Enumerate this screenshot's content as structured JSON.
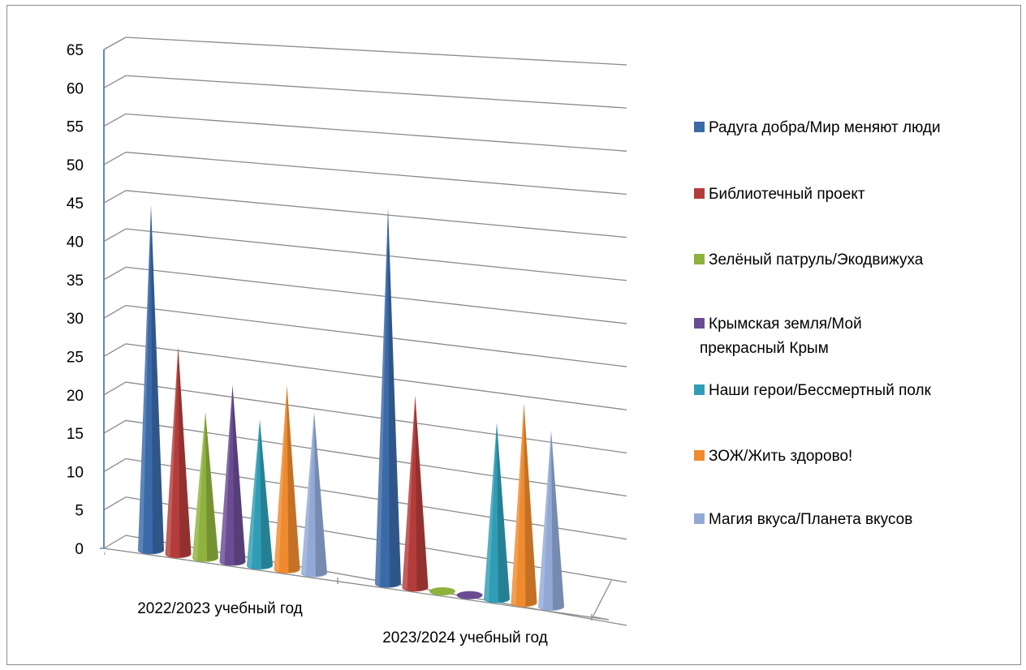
{
  "chart_data": {
    "type": "bar",
    "subtype": "3d-cone",
    "categories": [
      "2022/2023 учебный год",
      "2023/2024 учебный год"
    ],
    "series": [
      {
        "name": "Радуга добра/Мир меняют люди",
        "values": [
          45,
          49
        ],
        "color": "#3b6aa8"
      },
      {
        "name": "Библиотечный проект",
        "values": [
          27,
          25
        ],
        "color": "#b43c3a"
      },
      {
        "name": "Зелёный патруль/Экодвижуха",
        "values": [
          19,
          0
        ],
        "color": "#8fb23e"
      },
      {
        "name": "Крымская земля/Мой прекрасный Крым",
        "values": [
          23,
          0
        ],
        "color": "#6a4c93"
      },
      {
        "name": "Наши герои/Бессмертный полк",
        "values": [
          19,
          23
        ],
        "color": "#2f9db5"
      },
      {
        "name": "ЗОЖ/Жить здорово!",
        "values": [
          24,
          26
        ],
        "color": "#ef8a2e"
      },
      {
        "name": "Магия вкуса/Планета вкусов",
        "values": [
          21,
          23
        ],
        "color": "#92a9d6"
      }
    ],
    "ylim": [
      0,
      65
    ],
    "yticks": [
      "0",
      "5",
      "10",
      "15",
      "20",
      "25",
      "30",
      "35",
      "40",
      "45",
      "50",
      "55",
      "60",
      "65"
    ],
    "grid": true,
    "legend_position": "right",
    "title": "",
    "xlabel": "",
    "ylabel": ""
  }
}
